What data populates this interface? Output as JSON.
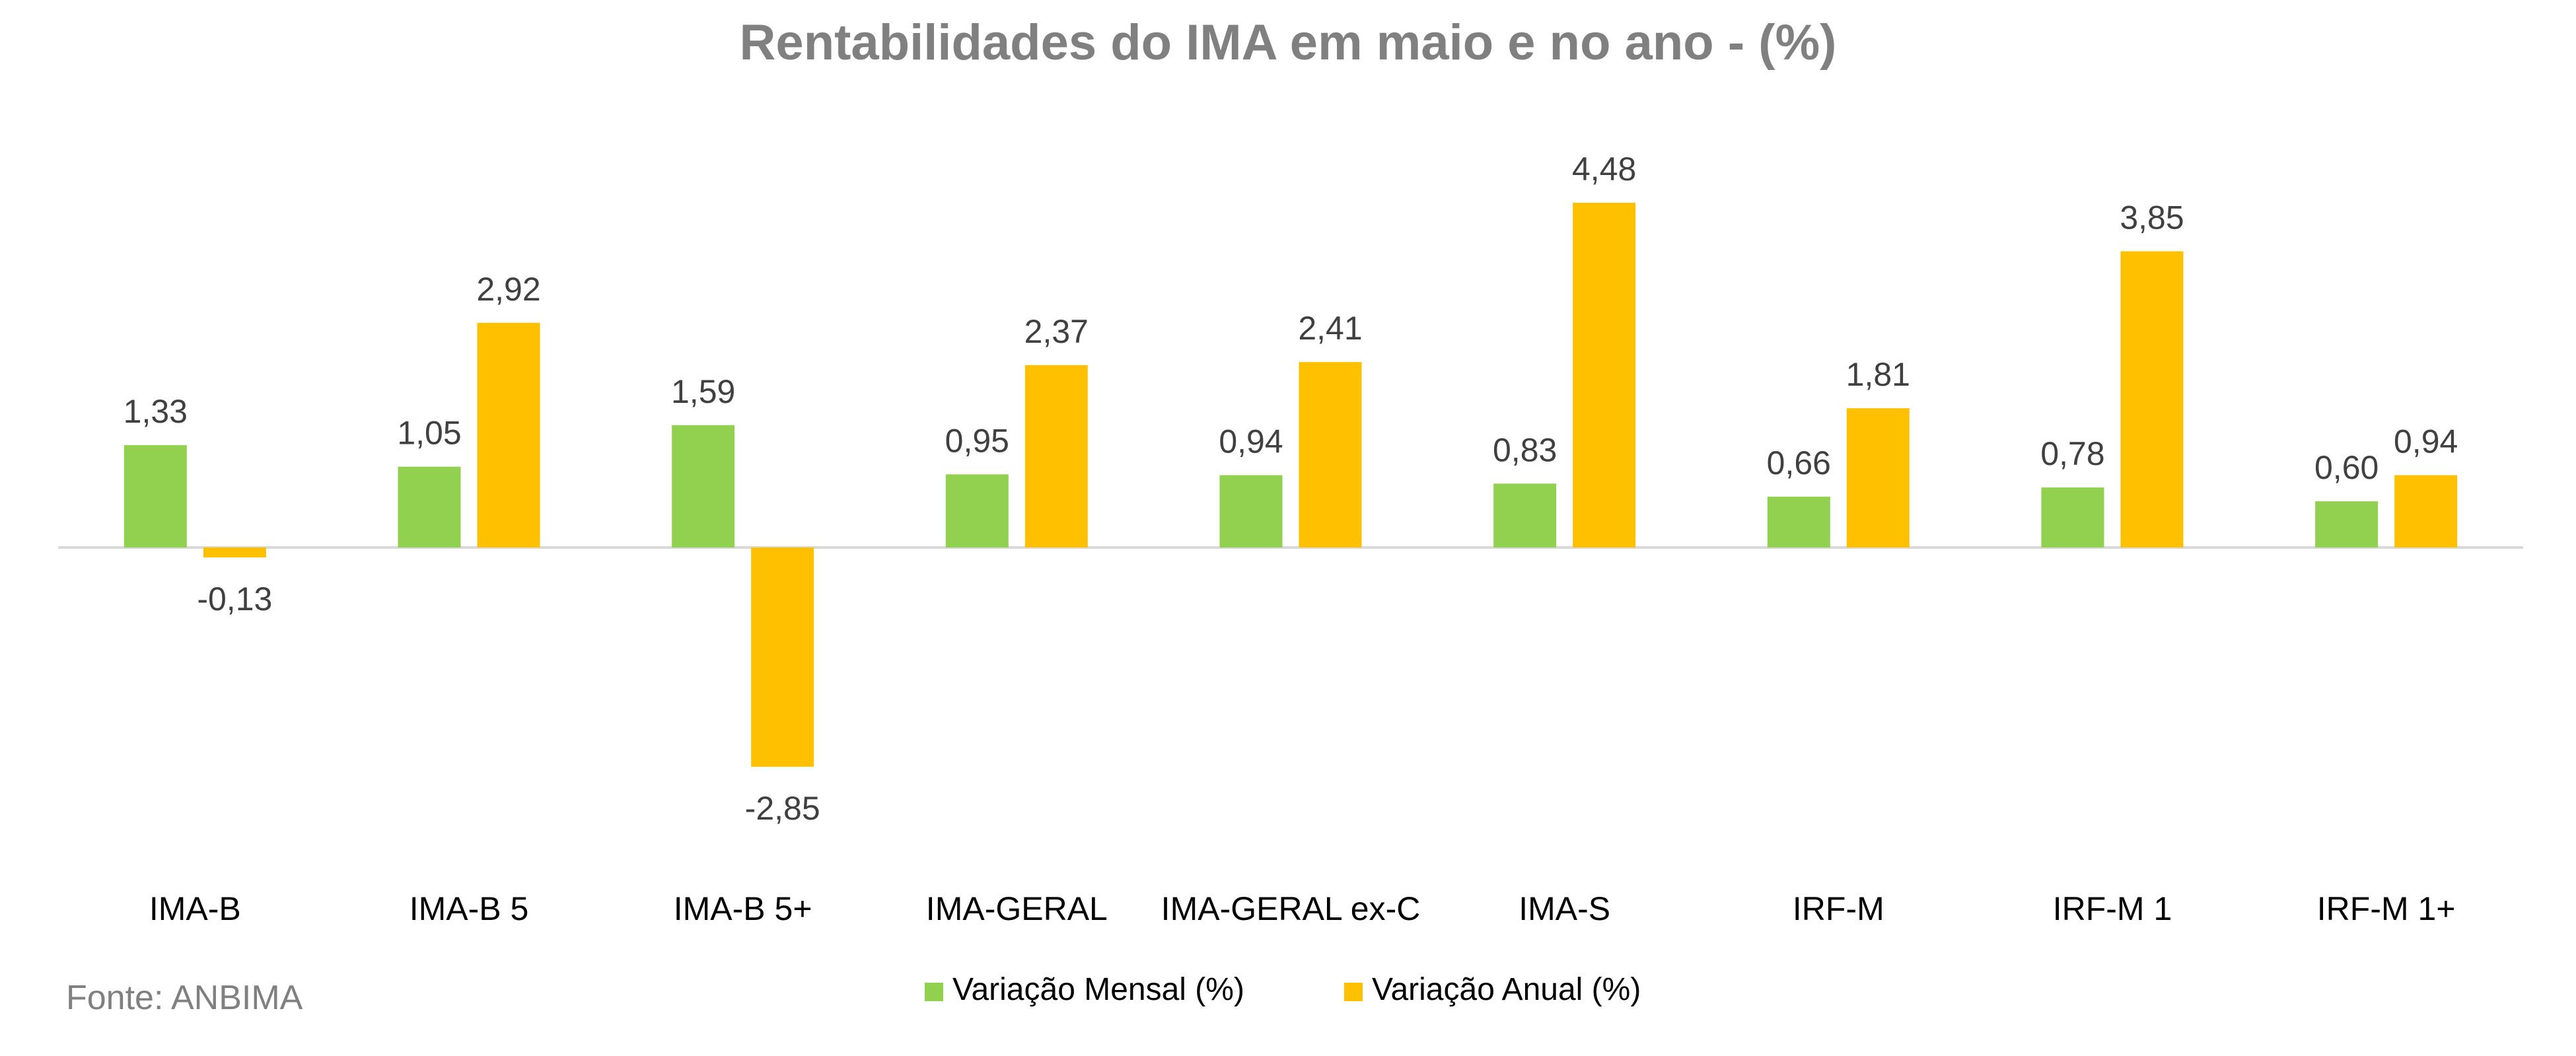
{
  "chart_data": {
    "type": "bar",
    "title": "Rentabilidades do IMA em maio e no ano - (%)",
    "source": "Fonte: ANBIMA",
    "categories": [
      "IMA-B",
      "IMA-B 5",
      "IMA-B 5+",
      "IMA-GERAL",
      "IMA-GERAL ex-C",
      "IMA-S",
      "IRF-M",
      "IRF-M 1",
      "IRF-M 1+"
    ],
    "series": [
      {
        "name": "Variação Mensal (%)",
        "color": "#92D050",
        "values": [
          1.33,
          1.05,
          1.59,
          0.95,
          0.94,
          0.83,
          0.66,
          0.78,
          0.6
        ],
        "labels": [
          "1,33",
          "1,05",
          "1,59",
          "0,95",
          "0,94",
          "0,83",
          "0,66",
          "0,78",
          "0,60"
        ]
      },
      {
        "name": "Variação Anual (%)",
        "color": "#FFC000",
        "values": [
          -0.13,
          2.92,
          -2.85,
          2.37,
          2.41,
          4.48,
          1.81,
          3.85,
          0.94
        ],
        "labels": [
          "-0,13",
          "2,92",
          "-2,85",
          "2,37",
          "2,41",
          "4,48",
          "1,81",
          "3,85",
          "0,94"
        ]
      }
    ],
    "legend_position": "bottom",
    "grid": false
  }
}
